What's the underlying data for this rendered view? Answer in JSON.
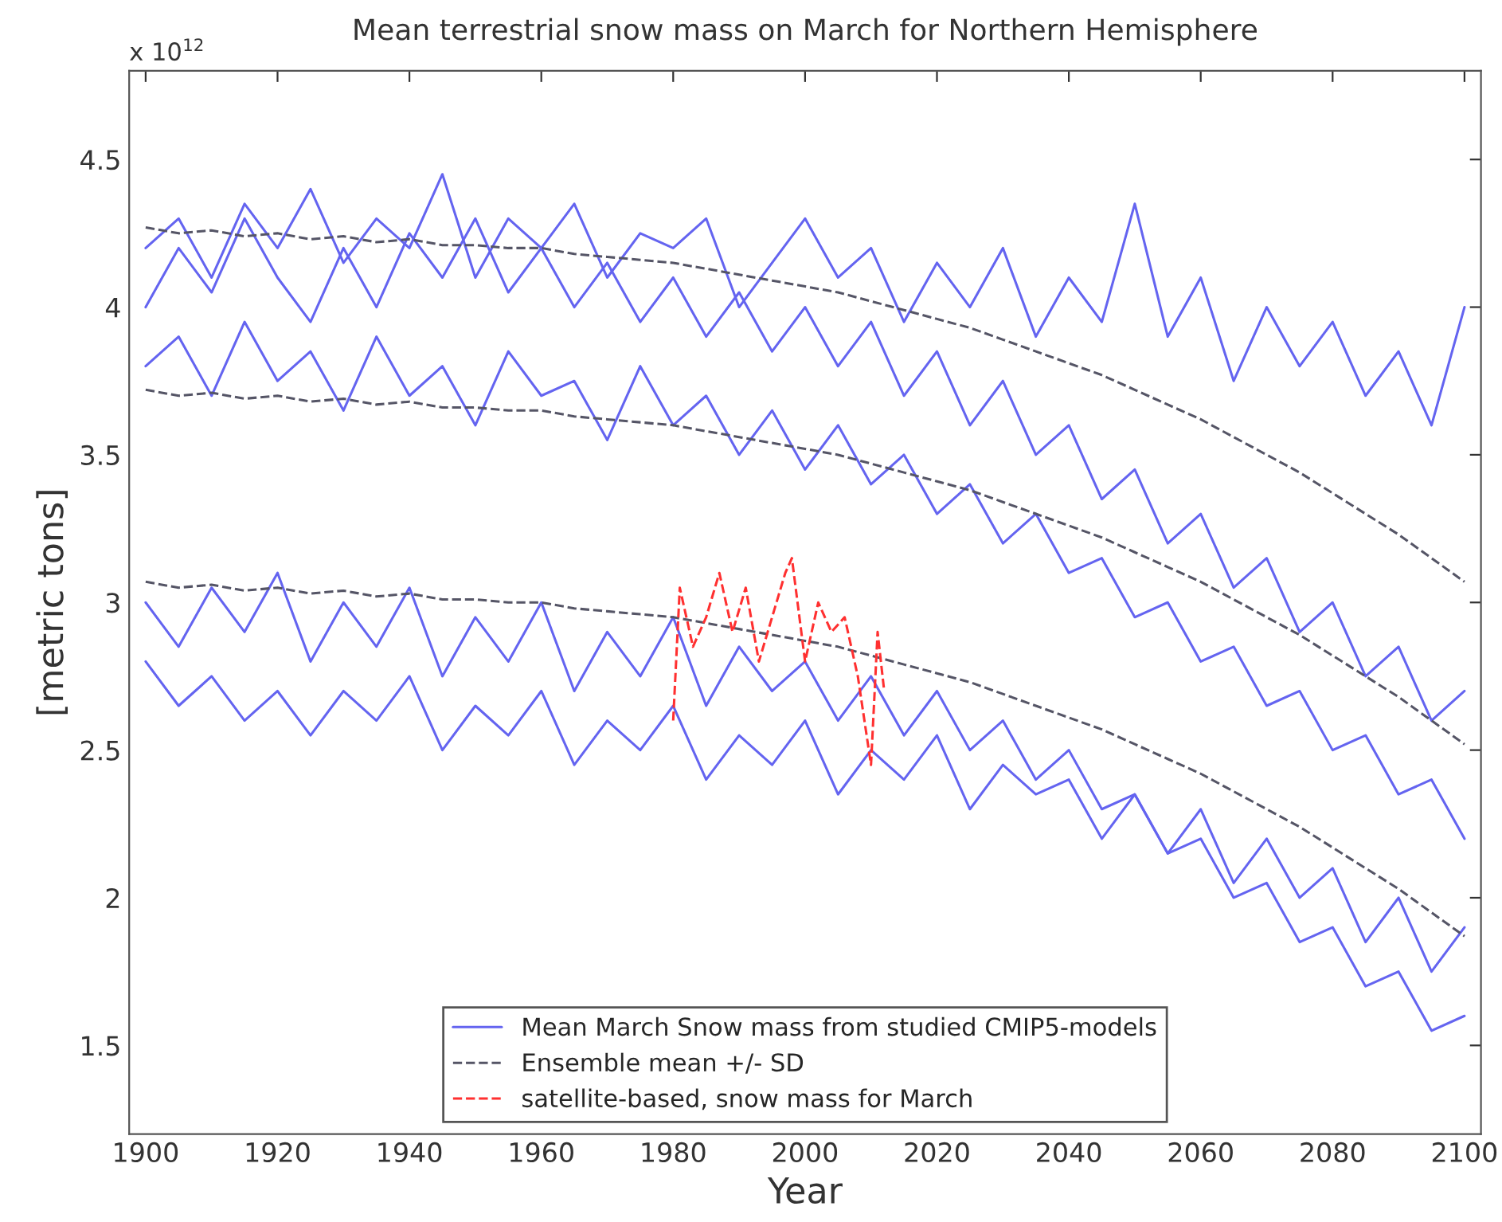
{
  "chart_data": {
    "type": "line",
    "title": "Mean terrestrial snow mass on March for Northern Hemisphere",
    "xlabel": "Year",
    "ylabel": "[metric tons]",
    "annotations": [
      "x 10$^{12}$"
    ],
    "x": [
      1900,
      1905,
      1910,
      1915,
      1920,
      1925,
      1930,
      1935,
      1940,
      1945,
      1950,
      1955,
      1960,
      1965,
      1970,
      1975,
      1980,
      1985,
      1990,
      1995,
      2000,
      2005,
      2010,
      2015,
      2020,
      2025,
      2030,
      2035,
      2040,
      2045,
      2050,
      2055,
      2060,
      2065,
      2070,
      2075,
      2080,
      2085,
      2090,
      2095,
      2100
    ],
    "xlim": [
      1897.5,
      2102.5
    ],
    "xticks": [
      1900,
      1920,
      1940,
      1960,
      1980,
      2000,
      2020,
      2040,
      2060,
      2080,
      2100
    ],
    "ylim": [
      1.2,
      4.8
    ],
    "yticks": [
      1.5,
      2,
      2.5,
      3,
      3.5,
      4,
      4.5
    ],
    "grid": false,
    "legend": "bottom",
    "marker": "none",
    "series": [
      {
        "name": "Mean March Snow mass from studied CMIP5-models",
        "color": "#6464f0",
        "line_style": "solid",
        "values": [
          4.2,
          4.3,
          4.1,
          4.35,
          4.2,
          4.4,
          4.15,
          4.3,
          4.2,
          4.45,
          4.1,
          4.3,
          4.2,
          4.35,
          4.1,
          4.25,
          4.2,
          4.3,
          4.0,
          4.15,
          4.3,
          4.1,
          4.2,
          3.95,
          4.15,
          4.0,
          4.2,
          3.9,
          4.1,
          3.95,
          4.35,
          3.9,
          4.1,
          3.75,
          4.0,
          3.8,
          3.95,
          3.7,
          3.85,
          3.6,
          4.0
        ]
      },
      {
        "color": "#6464f0",
        "line_style": "solid",
        "values": [
          4.0,
          4.2,
          4.05,
          4.3,
          4.1,
          3.95,
          4.2,
          4.0,
          4.25,
          4.1,
          4.3,
          4.05,
          4.2,
          4.0,
          4.15,
          3.95,
          4.1,
          3.9,
          4.05,
          3.85,
          4.0,
          3.8,
          3.95,
          3.7,
          3.85,
          3.6,
          3.75,
          3.5,
          3.6,
          3.35,
          3.45,
          3.2,
          3.3,
          3.05,
          3.15,
          2.9,
          3.0,
          2.75,
          2.85,
          2.6,
          2.7
        ]
      },
      {
        "color": "#6464f0",
        "line_style": "solid",
        "values": [
          3.8,
          3.9,
          3.7,
          3.95,
          3.75,
          3.85,
          3.65,
          3.9,
          3.7,
          3.8,
          3.6,
          3.85,
          3.7,
          3.75,
          3.55,
          3.8,
          3.6,
          3.7,
          3.5,
          3.65,
          3.45,
          3.6,
          3.4,
          3.5,
          3.3,
          3.4,
          3.2,
          3.3,
          3.1,
          3.15,
          2.95,
          3.0,
          2.8,
          2.85,
          2.65,
          2.7,
          2.5,
          2.55,
          2.35,
          2.4,
          2.2
        ]
      },
      {
        "color": "#6464f0",
        "line_style": "solid",
        "values": [
          3.0,
          2.85,
          3.05,
          2.9,
          3.1,
          2.8,
          3.0,
          2.85,
          3.05,
          2.75,
          2.95,
          2.8,
          3.0,
          2.7,
          2.9,
          2.75,
          2.95,
          2.65,
          2.85,
          2.7,
          2.8,
          2.6,
          2.75,
          2.55,
          2.7,
          2.5,
          2.6,
          2.4,
          2.5,
          2.3,
          2.35,
          2.15,
          2.2,
          2.0,
          2.05,
          1.85,
          1.9,
          1.7,
          1.75,
          1.55,
          1.6
        ]
      },
      {
        "color": "#6464f0",
        "line_style": "solid",
        "values": [
          2.8,
          2.65,
          2.75,
          2.6,
          2.7,
          2.55,
          2.7,
          2.6,
          2.75,
          2.5,
          2.65,
          2.55,
          2.7,
          2.45,
          2.6,
          2.5,
          2.65,
          2.4,
          2.55,
          2.45,
          2.6,
          2.35,
          2.5,
          2.4,
          2.55,
          2.3,
          2.45,
          2.35,
          2.4,
          2.2,
          2.35,
          2.15,
          2.3,
          2.05,
          2.2,
          2.0,
          2.1,
          1.85,
          2.0,
          1.75,
          1.9
        ]
      },
      {
        "name": "Ensemble mean +/- SD",
        "color": "#555566",
        "line_style": "dashed",
        "values": [
          3.72,
          3.7,
          3.71,
          3.69,
          3.7,
          3.68,
          3.69,
          3.67,
          3.68,
          3.66,
          3.66,
          3.65,
          3.65,
          3.63,
          3.62,
          3.61,
          3.6,
          3.58,
          3.56,
          3.54,
          3.52,
          3.5,
          3.47,
          3.44,
          3.41,
          3.38,
          3.34,
          3.3,
          3.26,
          3.22,
          3.17,
          3.12,
          3.07,
          3.01,
          2.95,
          2.89,
          2.82,
          2.75,
          2.68,
          2.6,
          2.52
        ]
      },
      {
        "color": "#555566",
        "line_style": "dashed",
        "values": [
          4.27,
          4.25,
          4.26,
          4.24,
          4.25,
          4.23,
          4.24,
          4.22,
          4.23,
          4.21,
          4.21,
          4.2,
          4.2,
          4.18,
          4.17,
          4.16,
          4.15,
          4.13,
          4.11,
          4.09,
          4.07,
          4.05,
          4.02,
          3.99,
          3.96,
          3.93,
          3.89,
          3.85,
          3.81,
          3.77,
          3.72,
          3.67,
          3.62,
          3.56,
          3.5,
          3.44,
          3.37,
          3.3,
          3.23,
          3.15,
          3.07
        ]
      },
      {
        "color": "#555566",
        "line_style": "dashed",
        "values": [
          3.07,
          3.05,
          3.06,
          3.04,
          3.05,
          3.03,
          3.04,
          3.02,
          3.03,
          3.01,
          3.01,
          3.0,
          3.0,
          2.98,
          2.97,
          2.96,
          2.95,
          2.93,
          2.91,
          2.89,
          2.87,
          2.85,
          2.82,
          2.79,
          2.76,
          2.73,
          2.69,
          2.65,
          2.61,
          2.57,
          2.52,
          2.47,
          2.42,
          2.36,
          2.3,
          2.24,
          2.17,
          2.1,
          2.03,
          1.95,
          1.87
        ]
      },
      {
        "name": "satellite-based, snow mass for March",
        "color": "#ff3030",
        "line_style": "dashed",
        "x": [
          1980,
          1981,
          1983,
          1985,
          1987,
          1989,
          1991,
          1993,
          1995,
          1997,
          1998,
          2000,
          2002,
          2004,
          2006,
          2008,
          2010,
          2011,
          2012
        ],
        "values": [
          2.6,
          3.05,
          2.85,
          2.95,
          3.1,
          2.9,
          3.05,
          2.8,
          2.95,
          3.1,
          3.15,
          2.8,
          3.0,
          2.9,
          2.95,
          2.75,
          2.45,
          2.9,
          2.7
        ]
      }
    ]
  }
}
